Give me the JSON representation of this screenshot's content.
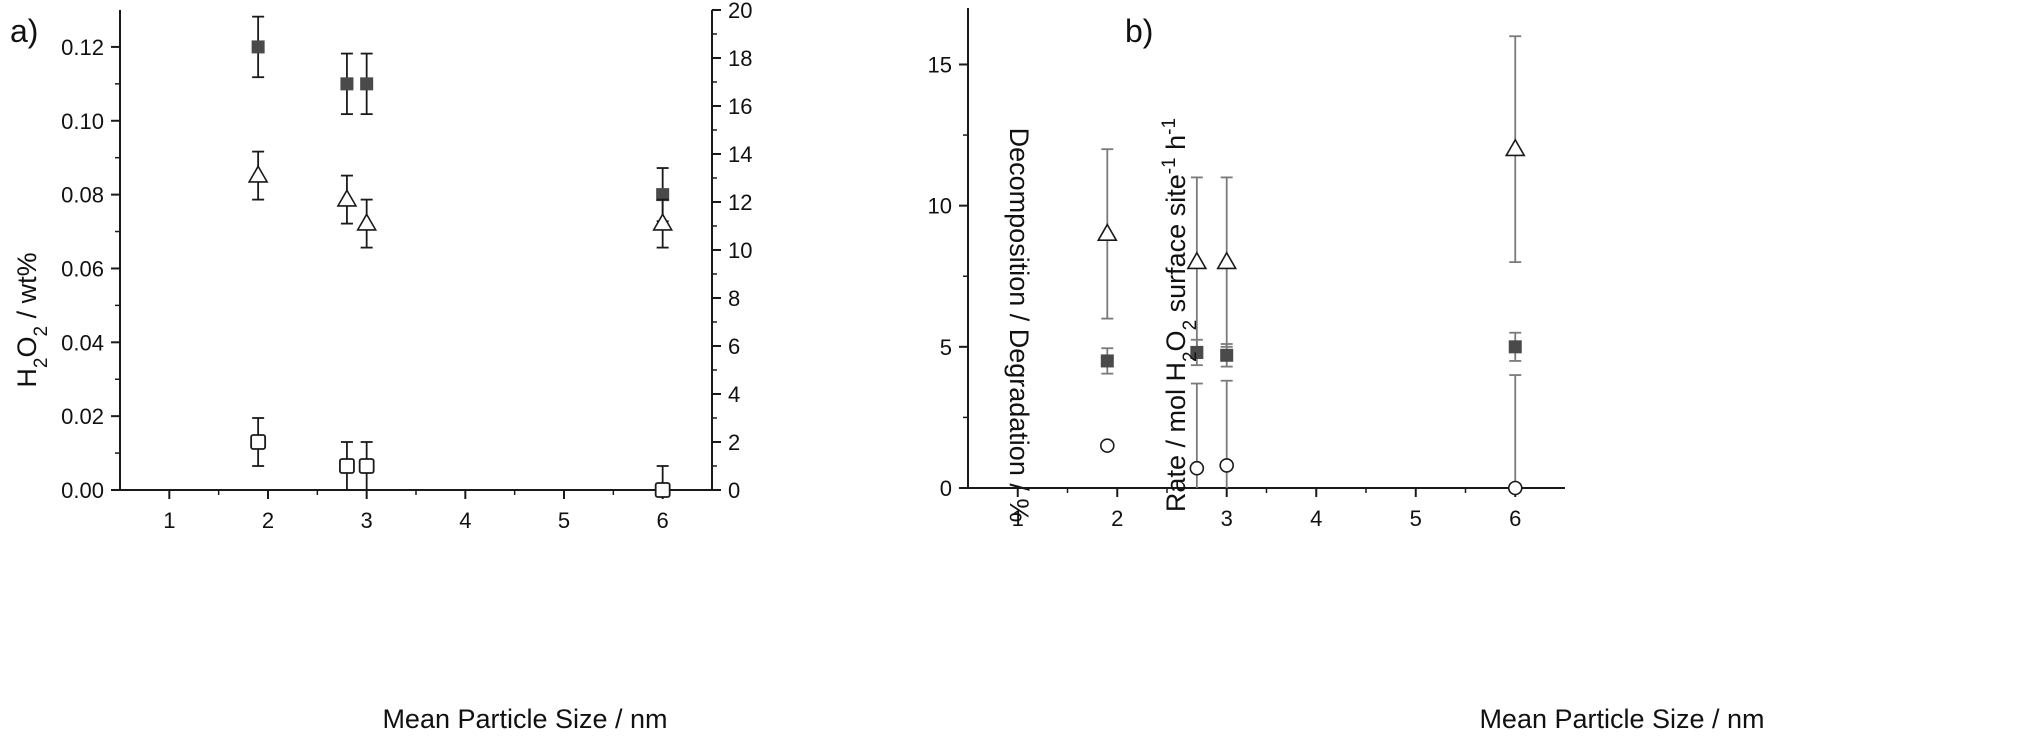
{
  "colors": {
    "axis": "#1a1a1a",
    "marker_filled": "#4a4a4a",
    "marker_open_fill": "#ffffff",
    "error_bar_a": "#1a1a1a",
    "error_bar_b": "#7a7a7a"
  },
  "chart_data": [
    {
      "type": "scatter",
      "panel_label": "a)",
      "xlabel": "Mean Particle Size / nm",
      "ylabel": {
        "base": "H",
        "sub1": "2",
        "mid": "O",
        "sub2": "2",
        "tail": " / wt%"
      },
      "y2label": "Decomposition / Degradation / %",
      "xlim": [
        0.5,
        6.5
      ],
      "ylim": [
        0,
        0.13
      ],
      "y2lim": [
        0,
        20
      ],
      "x_ticks": [
        1,
        2,
        3,
        4,
        5,
        6
      ],
      "x_tick_labels": [
        "1",
        "2",
        "3",
        "4",
        "5",
        "6"
      ],
      "x_tick_positions": [
        1,
        2,
        3,
        4,
        5,
        6
      ],
      "y_ticks": [
        0,
        0.02,
        0.04,
        0.06,
        0.08,
        0.1,
        0.12
      ],
      "y_tick_labels": [
        "0.00",
        "0.02",
        "0.04",
        "0.06",
        "0.08",
        "0.10",
        "0.12"
      ],
      "y2_ticks": [
        0,
        2,
        4,
        6,
        8,
        10,
        12,
        14,
        16,
        18,
        20
      ],
      "y2_tick_labels": [
        "0",
        "2",
        "4",
        "6",
        "8",
        "10",
        "12",
        "14",
        "16",
        "18",
        "20"
      ],
      "grid": false,
      "series": [
        {
          "marker": "filled-square",
          "axis": "left",
          "x": [
            1.9,
            2.8,
            3.0,
            6.0
          ],
          "y": [
            0.12,
            0.11,
            0.11,
            0.08
          ],
          "err": [
            0.0082,
            0.0082,
            0.0082,
            0.0072
          ]
        },
        {
          "marker": "open-triangle",
          "axis": "right",
          "x": [
            1.9,
            2.8,
            3.0,
            6.0
          ],
          "y": [
            13.1,
            12.1,
            11.1,
            11.1
          ],
          "err": [
            1.0,
            1.0,
            1.0,
            1.0
          ]
        },
        {
          "marker": "open-square",
          "axis": "right",
          "x": [
            1.9,
            2.8,
            3.0,
            6.0
          ],
          "y": [
            2.0,
            1.0,
            1.0,
            0.0
          ],
          "err": [
            1.0,
            1.0,
            1.0,
            1.0
          ]
        }
      ]
    },
    {
      "type": "scatter",
      "panel_label": "b)",
      "xlabel": "Mean Particle Size / nm",
      "ylabel": {
        "base": "Rate / mol H",
        "sub1": "2",
        "mid": "O",
        "sub2": "2",
        "tail": " surface site",
        "sup1": "-1",
        "tail2": " h",
        "sup2": "-1"
      },
      "xlim": [
        0.5,
        6.5
      ],
      "ylim": [
        0,
        17
      ],
      "x_ticks": [
        1,
        2,
        3,
        4,
        5,
        6
      ],
      "x_tick_labels": [
        "1",
        "2",
        "3",
        "4",
        "5",
        "6"
      ],
      "x_tick_positions": [
        1,
        2,
        3.1,
        4,
        5,
        6
      ],
      "y_ticks": [
        0,
        5,
        10,
        15
      ],
      "y_tick_labels": [
        "0",
        "5",
        "10",
        "15"
      ],
      "grid": false,
      "series": [
        {
          "marker": "open-triangle",
          "x": [
            1.9,
            2.8,
            3.1,
            6.0
          ],
          "y": [
            9.0,
            8.0,
            8.0,
            12.0
          ],
          "err": [
            3.0,
            3.0,
            3.0,
            4.0
          ]
        },
        {
          "marker": "filled-square",
          "x": [
            1.9,
            2.8,
            3.1,
            6.0
          ],
          "y": [
            4.5,
            4.8,
            4.7,
            5.0
          ],
          "err": [
            0.45,
            0.45,
            0.4,
            0.5
          ]
        },
        {
          "marker": "open-circle",
          "x": [
            1.9,
            2.8,
            3.1,
            6.0
          ],
          "y": [
            1.5,
            0.7,
            0.8,
            0.0
          ],
          "err": [
            0,
            3.0,
            3.0,
            4.0
          ]
        }
      ]
    }
  ]
}
